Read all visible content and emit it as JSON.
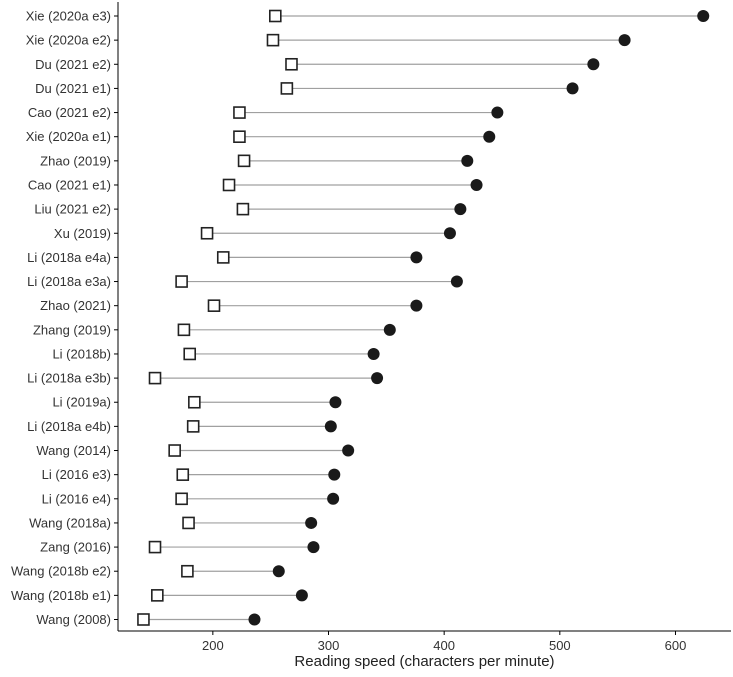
{
  "chart_data": {
    "type": "dumbbell",
    "xlabel": "Reading speed (characters per minute)",
    "ylabel": "",
    "xlim": [
      118,
      648
    ],
    "xticks": [
      200,
      300,
      400,
      500,
      600
    ],
    "grid": false,
    "legend": "none",
    "colors": {
      "segment": "#a0a0a0",
      "square_stroke": "#222222",
      "dot_fill": "#1a1a1a"
    },
    "categories": [
      "Xie (2020a e3)",
      "Xie (2020a e2)",
      "Du (2021 e2)",
      "Du (2021 e1)",
      "Cao (2021 e2)",
      "Xie (2020a e1)",
      "Zhao (2019)",
      "Cao (2021 e1)",
      "Liu (2021 e2)",
      "Xu (2019)",
      "Li (2018a e4a)",
      "Li (2018a e3a)",
      "Zhao (2021)",
      "Zhang (2019)",
      "Li (2018b)",
      "Li (2018a e3b)",
      "Li (2019a)",
      "Li (2018a e4b)",
      "Wang (2014)",
      "Li (2016 e3)",
      "Li (2016 e4)",
      "Wang (2018a)",
      "Zang (2016)",
      "Wang (2018b e2)",
      "Wang (2018b e1)",
      "Wang (2008)"
    ],
    "series": [
      {
        "marker": "open-square",
        "values": [
          254,
          252,
          268,
          264,
          223,
          223,
          227,
          214,
          226,
          195,
          209,
          173,
          201,
          175,
          180,
          150,
          184,
          183,
          167,
          174,
          173,
          179,
          150,
          178,
          152,
          140
        ]
      },
      {
        "marker": "filled-circle",
        "values": [
          624,
          556,
          529,
          511,
          446,
          439,
          420,
          428,
          414,
          405,
          376,
          411,
          376,
          353,
          339,
          342,
          306,
          302,
          317,
          305,
          304,
          285,
          287,
          257,
          277,
          236
        ]
      }
    ]
  }
}
